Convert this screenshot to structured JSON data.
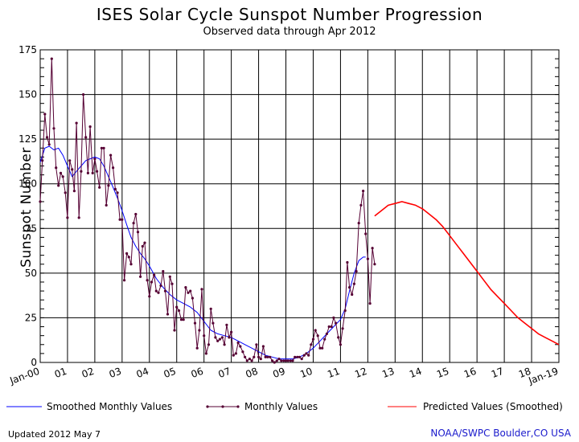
{
  "chart_data": {
    "type": "line",
    "title": "ISES Solar Cycle Sunspot Number Progression",
    "subtitle": "Observed data through Apr 2012",
    "ylabel": "Sunspot Number",
    "xlabel": "",
    "ylim": [
      0,
      175
    ],
    "yticks": [
      0,
      25,
      50,
      75,
      100,
      125,
      150,
      175
    ],
    "xlim": [
      2000.0,
      2019.0
    ],
    "xtick_labels": [
      {
        "label": "Jan-00",
        "x": 2000.0
      },
      {
        "label": "01",
        "x": 2001.0
      },
      {
        "label": "02",
        "x": 2002.0
      },
      {
        "label": "03",
        "x": 2003.0
      },
      {
        "label": "04",
        "x": 2004.0
      },
      {
        "label": "05",
        "x": 2005.0
      },
      {
        "label": "06",
        "x": 2006.0
      },
      {
        "label": "07",
        "x": 2007.0
      },
      {
        "label": "08",
        "x": 2008.0
      },
      {
        "label": "09",
        "x": 2009.0
      },
      {
        "label": "10",
        "x": 2010.0
      },
      {
        "label": "11",
        "x": 2011.0
      },
      {
        "label": "12",
        "x": 2012.0
      },
      {
        "label": "13",
        "x": 2013.0
      },
      {
        "label": "14",
        "x": 2014.0
      },
      {
        "label": "15",
        "x": 2015.0
      },
      {
        "label": "16",
        "x": 2016.0
      },
      {
        "label": "17",
        "x": 2017.0
      },
      {
        "label": "18",
        "x": 2018.0
      },
      {
        "label": "Jan-19",
        "x": 2019.0
      }
    ],
    "grid": true,
    "legend_position": "bottom",
    "series": [
      {
        "name": "Smoothed Monthly Values",
        "color": "#0000ff",
        "marker": "none",
        "x": [
          2000.0,
          2000.17,
          2000.33,
          2000.5,
          2000.67,
          2000.83,
          2001.0,
          2001.17,
          2001.33,
          2001.5,
          2001.67,
          2001.83,
          2002.0,
          2002.17,
          2002.33,
          2002.5,
          2002.67,
          2002.83,
          2003.0,
          2003.17,
          2003.33,
          2003.5,
          2003.67,
          2003.83,
          2004.0,
          2004.25,
          2004.5,
          2004.75,
          2005.0,
          2005.25,
          2005.5,
          2005.75,
          2006.0,
          2006.25,
          2006.5,
          2006.75,
          2007.0,
          2007.25,
          2007.5,
          2007.75,
          2008.0,
          2008.25,
          2008.5,
          2008.75,
          2009.0,
          2009.25,
          2009.5,
          2009.75,
          2010.0,
          2010.25,
          2010.5,
          2010.75,
          2011.0,
          2011.17,
          2011.33,
          2011.5,
          2011.67,
          2011.83,
          2011.92
        ],
        "values": [
          112,
          120,
          121,
          119,
          120,
          116,
          110,
          104,
          107,
          110,
          113,
          114,
          115,
          114,
          110,
          104,
          98,
          92,
          85,
          77,
          70,
          65,
          61,
          58,
          54,
          47,
          42,
          38,
          35,
          33,
          31,
          28,
          23,
          18,
          16,
          15,
          14,
          12,
          10,
          8,
          6,
          4,
          3,
          2,
          2,
          2,
          3,
          5,
          8,
          12,
          16,
          20,
          24,
          30,
          40,
          50,
          57,
          59,
          59
        ]
      },
      {
        "name": "Monthly Values",
        "color": "#550033",
        "marker": "dot",
        "x": [
          2000.0,
          2000.08,
          2000.17,
          2000.25,
          2000.33,
          2000.42,
          2000.5,
          2000.58,
          2000.67,
          2000.75,
          2000.83,
          2000.92,
          2001.0,
          2001.08,
          2001.17,
          2001.25,
          2001.33,
          2001.42,
          2001.5,
          2001.58,
          2001.67,
          2001.75,
          2001.83,
          2001.92,
          2002.0,
          2002.08,
          2002.17,
          2002.25,
          2002.33,
          2002.42,
          2002.5,
          2002.58,
          2002.67,
          2002.75,
          2002.83,
          2002.92,
          2003.0,
          2003.08,
          2003.17,
          2003.25,
          2003.33,
          2003.42,
          2003.5,
          2003.58,
          2003.67,
          2003.75,
          2003.83,
          2003.92,
          2004.0,
          2004.08,
          2004.17,
          2004.25,
          2004.33,
          2004.42,
          2004.5,
          2004.58,
          2004.67,
          2004.75,
          2004.83,
          2004.92,
          2005.0,
          2005.08,
          2005.17,
          2005.25,
          2005.33,
          2005.42,
          2005.5,
          2005.58,
          2005.67,
          2005.75,
          2005.83,
          2005.92,
          2006.0,
          2006.08,
          2006.17,
          2006.25,
          2006.33,
          2006.42,
          2006.5,
          2006.58,
          2006.67,
          2006.75,
          2006.83,
          2006.92,
          2007.0,
          2007.08,
          2007.17,
          2007.25,
          2007.33,
          2007.42,
          2007.5,
          2007.58,
          2007.67,
          2007.75,
          2007.83,
          2007.92,
          2008.0,
          2008.08,
          2008.17,
          2008.25,
          2008.33,
          2008.42,
          2008.5,
          2008.58,
          2008.67,
          2008.75,
          2008.83,
          2008.92,
          2009.0,
          2009.08,
          2009.17,
          2009.25,
          2009.33,
          2009.42,
          2009.5,
          2009.58,
          2009.67,
          2009.75,
          2009.83,
          2009.92,
          2010.0,
          2010.08,
          2010.17,
          2010.25,
          2010.33,
          2010.42,
          2010.5,
          2010.58,
          2010.67,
          2010.75,
          2010.83,
          2010.92,
          2011.0,
          2011.08,
          2011.17,
          2011.25,
          2011.33,
          2011.42,
          2011.5,
          2011.58,
          2011.67,
          2011.75,
          2011.83,
          2011.92,
          2012.0,
          2012.08,
          2012.17,
          2012.25
        ],
        "values": [
          90,
          113,
          139,
          126,
          122,
          170,
          131,
          109,
          99,
          106,
          104,
          95,
          81,
          113,
          108,
          96,
          134,
          81,
          107,
          150,
          126,
          106,
          132,
          106,
          114,
          107,
          98,
          120,
          120,
          88,
          99,
          116,
          109,
          97,
          95,
          80,
          80,
          46,
          61,
          59,
          55,
          78,
          83,
          73,
          48,
          65,
          67,
          46,
          37,
          45,
          49,
          40,
          39,
          43,
          51,
          40,
          27,
          48,
          44,
          18,
          31,
          29,
          24,
          24,
          42,
          39,
          40,
          36,
          22,
          8,
          18,
          41,
          15,
          5,
          10,
          30,
          22,
          14,
          12,
          13,
          14,
          10,
          21,
          14,
          17,
          4,
          5,
          11,
          9,
          6,
          3,
          1,
          2,
          1,
          3,
          10,
          3,
          2,
          9,
          3,
          3,
          3,
          1,
          0,
          1,
          2,
          1,
          1,
          1,
          1,
          1,
          1,
          3,
          3,
          3,
          2,
          4,
          5,
          4,
          10,
          13,
          18,
          15,
          8,
          8,
          13,
          16,
          20,
          20,
          25,
          22,
          14,
          10,
          19,
          29,
          56,
          42,
          38,
          44,
          51,
          78,
          88,
          96,
          72,
          58,
          33,
          64,
          55
        ]
      },
      {
        "name": "Predicted Values (Smoothed)",
        "color": "#ff0000",
        "marker": "none",
        "x": [
          2012.25,
          2012.5,
          2012.75,
          2013.0,
          2013.25,
          2013.5,
          2013.75,
          2014.0,
          2014.25,
          2014.5,
          2014.75,
          2015.0,
          2015.25,
          2015.5,
          2015.75,
          2016.0,
          2016.25,
          2016.5,
          2016.75,
          2017.0,
          2017.25,
          2017.5,
          2017.75,
          2018.0,
          2018.25,
          2018.5,
          2018.75,
          2019.0
        ],
        "values": [
          82,
          85,
          88,
          89,
          90,
          89,
          88,
          86,
          83,
          80,
          76,
          71,
          66,
          61,
          56,
          51,
          46,
          41,
          37,
          33,
          29,
          25,
          22,
          19,
          16,
          14,
          12,
          10
        ]
      }
    ]
  },
  "footer": {
    "updated": "Updated 2012 May  7",
    "source": "NOAA/SWPC Boulder,CO USA"
  }
}
